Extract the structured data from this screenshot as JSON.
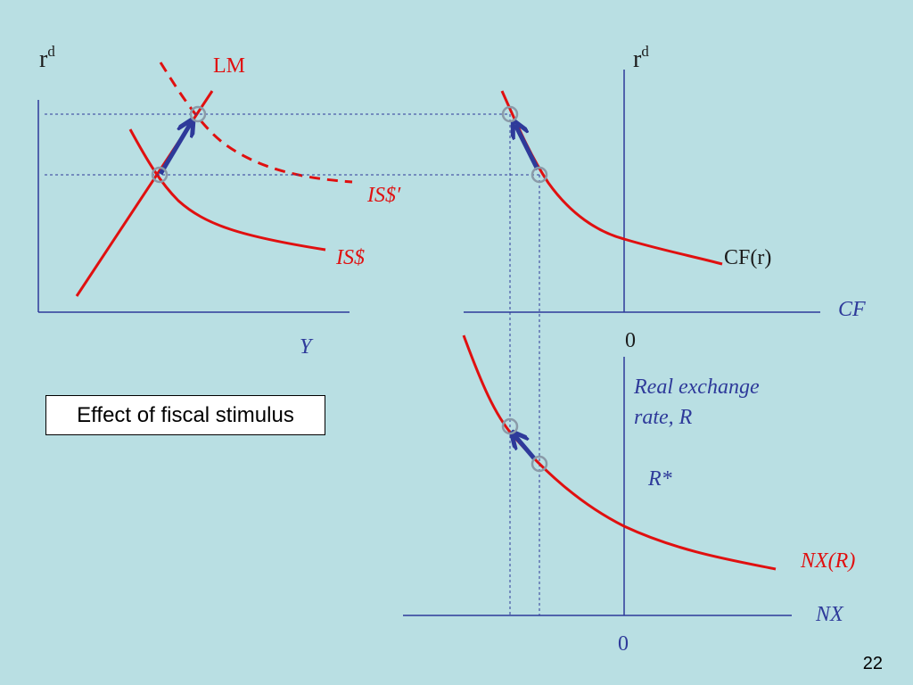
{
  "caption": "Effect of fiscal stimulus",
  "slide_number": "22",
  "panels": {
    "is_lm": {
      "y_axis": "r",
      "y_axis_sup": "d",
      "x_axis": "Y",
      "curves": {
        "lm": "LM",
        "is": "IS$",
        "is_shifted": "IS$′"
      }
    },
    "capital_flows": {
      "y_axis": "r",
      "y_axis_sup": "d",
      "x_axis": "CF",
      "zero": "0",
      "curve": "CF(r)"
    },
    "net_exports": {
      "y_axis_line1": "Real exchange",
      "y_axis_line2": "rate, R",
      "equilibrium": "R*",
      "x_axis": "NX",
      "zero": "0",
      "curve": "NX(R)"
    }
  },
  "colors": {
    "background": "#b9dfe3",
    "axis": "#2e3a9a",
    "curve": "#e01010",
    "arrow": "#2e3a9a",
    "marker": "#8a9aa8"
  }
}
